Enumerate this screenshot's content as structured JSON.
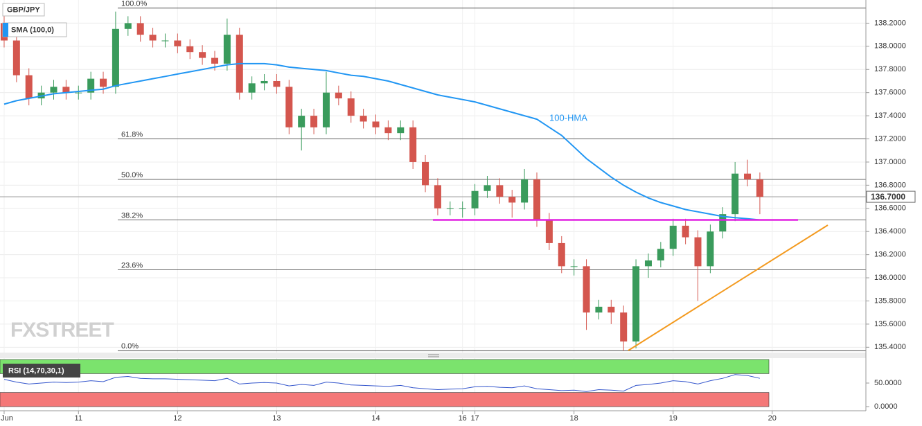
{
  "chart_data": {
    "type": "candlestick",
    "symbol": "GBP/JPY",
    "x": [
      0,
      3,
      6,
      9,
      12,
      15,
      18,
      21,
      24,
      27,
      30,
      33,
      36,
      39,
      42,
      45,
      48,
      51,
      54,
      57,
      60,
      63,
      66,
      69,
      72,
      75,
      78,
      81,
      84,
      87,
      90,
      93,
      96,
      99,
      102,
      105,
      108,
      111,
      114,
      117,
      120,
      123,
      126,
      129,
      132,
      135,
      138,
      141,
      144,
      147,
      150,
      153,
      156,
      159,
      162,
      165,
      168,
      171,
      174,
      177,
      180,
      183
    ],
    "open": [
      138.2,
      138.05,
      137.75,
      137.55,
      137.6,
      137.65,
      137.6,
      137.6,
      137.72,
      137.65,
      138.15,
      138.2,
      138.1,
      138.05,
      138.05,
      138.0,
      137.95,
      137.9,
      137.85,
      138.1,
      137.6,
      137.68,
      137.7,
      137.65,
      137.3,
      137.4,
      137.3,
      137.6,
      137.55,
      137.4,
      137.35,
      137.3,
      137.25,
      137.3,
      137.0,
      136.8,
      136.6,
      136.6,
      136.6,
      136.75,
      136.8,
      136.7,
      136.65,
      136.85,
      136.5,
      136.3,
      136.1,
      136.1,
      135.7,
      135.75,
      135.7,
      135.45,
      136.1,
      136.15,
      136.25,
      136.45,
      136.35,
      136.1,
      136.4,
      136.55,
      136.9,
      136.85
    ],
    "high": [
      138.26,
      138.11,
      137.81,
      137.66,
      137.71,
      137.71,
      137.66,
      137.78,
      137.78,
      138.3,
      138.26,
      138.26,
      138.16,
      138.11,
      138.11,
      138.06,
      138.01,
      137.96,
      138.24,
      138.16,
      137.74,
      137.76,
      137.76,
      137.71,
      137.46,
      137.46,
      137.78,
      137.66,
      137.61,
      137.46,
      137.41,
      137.36,
      137.36,
      137.36,
      137.06,
      136.86,
      136.66,
      136.66,
      136.81,
      136.88,
      136.86,
      136.76,
      136.94,
      136.91,
      136.56,
      136.36,
      136.16,
      136.16,
      135.81,
      135.81,
      135.76,
      136.16,
      136.21,
      136.31,
      136.51,
      136.51,
      136.41,
      136.46,
      136.61,
      137.0,
      137.02,
      136.91
    ],
    "low": [
      137.99,
      137.69,
      137.49,
      137.49,
      137.54,
      137.54,
      137.54,
      137.54,
      137.59,
      137.59,
      138.09,
      138.04,
      137.99,
      137.99,
      137.94,
      137.89,
      137.84,
      137.79,
      137.79,
      137.54,
      137.54,
      137.62,
      137.59,
      137.24,
      137.1,
      137.24,
      137.24,
      137.49,
      137.34,
      137.29,
      137.24,
      137.19,
      137.19,
      136.94,
      136.74,
      136.54,
      136.54,
      136.52,
      136.54,
      136.69,
      136.64,
      136.52,
      136.59,
      136.44,
      136.24,
      136.04,
      136.02,
      135.55,
      135.64,
      135.6,
      135.37,
      135.39,
      136.0,
      136.09,
      136.19,
      136.29,
      135.8,
      136.04,
      136.34,
      136.49,
      136.79,
      136.55
    ],
    "close": [
      138.05,
      137.75,
      137.55,
      137.6,
      137.65,
      137.6,
      137.6,
      137.72,
      137.65,
      138.15,
      138.2,
      138.1,
      138.05,
      138.05,
      138.0,
      137.95,
      137.9,
      137.85,
      138.1,
      137.6,
      137.68,
      137.7,
      137.65,
      137.3,
      137.4,
      137.3,
      137.6,
      137.55,
      137.4,
      137.35,
      137.3,
      137.25,
      137.3,
      137.0,
      136.8,
      136.6,
      136.6,
      136.6,
      136.75,
      136.8,
      136.7,
      136.65,
      136.85,
      136.5,
      136.3,
      136.1,
      136.1,
      135.7,
      135.75,
      135.7,
      135.45,
      136.1,
      136.15,
      136.25,
      136.45,
      136.35,
      136.1,
      136.4,
      136.55,
      136.9,
      136.85,
      136.7
    ],
    "up_color": "#3a9b5c",
    "down_color": "#d4564e",
    "xlim": [
      -1,
      207
    ],
    "xticks": [
      {
        "value": 0,
        "label": "Jun"
      },
      {
        "value": 18,
        "label": "11"
      },
      {
        "value": 42,
        "label": "12"
      },
      {
        "value": 66,
        "label": "13"
      },
      {
        "value": 90,
        "label": "14"
      },
      {
        "value": 111,
        "label": "16"
      },
      {
        "value": 114,
        "label": "17"
      },
      {
        "value": 138,
        "label": "18"
      },
      {
        "value": 162,
        "label": "19"
      },
      {
        "value": 186,
        "label": "20"
      }
    ],
    "ylim": [
      135.36,
      138.4
    ],
    "yticks": [
      {
        "value": 135.4,
        "label": "135.4000"
      },
      {
        "value": 135.6,
        "label": "135.6000"
      },
      {
        "value": 135.8,
        "label": "135.8000"
      },
      {
        "value": 136.0,
        "label": "136.0000"
      },
      {
        "value": 136.2,
        "label": "136.2000"
      },
      {
        "value": 136.4,
        "label": "136.4000"
      },
      {
        "value": 136.6,
        "label": "136.6000"
      },
      {
        "value": 136.8,
        "label": "136.8000"
      },
      {
        "value": 137.0,
        "label": "137.0000"
      },
      {
        "value": 137.2,
        "label": "137.2000"
      },
      {
        "value": 137.4,
        "label": "137.4000"
      },
      {
        "value": 137.6,
        "label": "137.6000"
      },
      {
        "value": 137.8,
        "label": "137.8000"
      },
      {
        "value": 138.0,
        "label": "138.0000"
      },
      {
        "value": 138.2,
        "label": "138.2000"
      }
    ],
    "grid": true,
    "overlay": {
      "name": "SMA (100,0)",
      "label": "100-HMA",
      "color": "#2196f3",
      "values": [
        137.5,
        137.53,
        137.55,
        137.57,
        137.59,
        137.6,
        137.61,
        137.62,
        137.63,
        137.66,
        137.68,
        137.7,
        137.72,
        137.74,
        137.76,
        137.78,
        137.8,
        137.82,
        137.84,
        137.85,
        137.85,
        137.85,
        137.84,
        137.82,
        137.81,
        137.8,
        137.79,
        137.77,
        137.75,
        137.74,
        137.72,
        137.7,
        137.67,
        137.64,
        137.61,
        137.58,
        137.56,
        137.54,
        137.52,
        137.49,
        137.46,
        137.43,
        137.4,
        137.37,
        137.3,
        137.23,
        137.13,
        137.03,
        136.95,
        136.87,
        136.8,
        136.74,
        136.69,
        136.65,
        136.62,
        136.59,
        136.57,
        136.55,
        136.53,
        136.52,
        136.51,
        136.5
      ]
    },
    "fibonacci": [
      {
        "label": "100.0%",
        "value": 138.33
      },
      {
        "label": "61.8%",
        "value": 137.2
      },
      {
        "label": "50.0%",
        "value": 136.85
      },
      {
        "label": "38.2%",
        "value": 136.5
      },
      {
        "label": "23.6%",
        "value": 136.07
      },
      {
        "label": "0.0%",
        "value": 135.37
      }
    ],
    "last_price": {
      "value": 136.7,
      "label": "136.7000"
    },
    "rsi": {
      "title": "RSI (14,70,30,1)",
      "color": "#3355cc",
      "values": [
        58,
        52,
        48,
        50,
        52,
        51,
        52,
        55,
        53,
        62,
        64,
        60,
        59,
        59,
        58,
        57,
        56,
        55,
        60,
        48,
        50,
        51,
        50,
        44,
        47,
        45,
        52,
        50,
        46,
        45,
        44,
        43,
        45,
        40,
        38,
        36,
        37,
        38,
        42,
        43,
        41,
        40,
        44,
        38,
        36,
        34,
        35,
        32,
        36,
        35,
        33,
        45,
        47,
        50,
        55,
        53,
        48,
        55,
        60,
        68,
        66,
        60
      ],
      "ylim": [
        0,
        100
      ],
      "yticks": [
        {
          "value": 0,
          "label": "0.0000"
        },
        {
          "value": 50,
          "label": "50.0000"
        }
      ],
      "overbought": 70,
      "oversold": 30
    },
    "watermark": "FXSTREET"
  }
}
